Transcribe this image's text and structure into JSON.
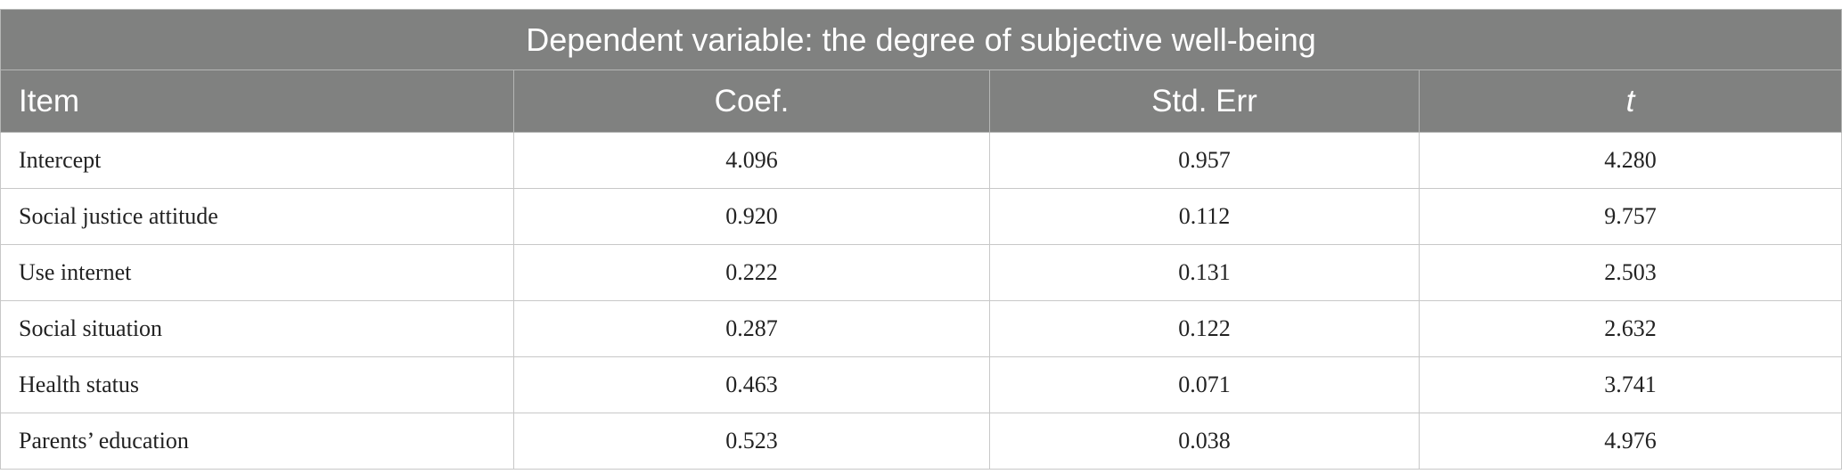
{
  "table": {
    "title": "Dependent variable: the degree of subjective well-being",
    "header": [
      "Item",
      "Coef.",
      "Std. Err",
      "t"
    ],
    "rows": [
      [
        "Intercept",
        "4.096",
        "0.957",
        "4.280"
      ],
      [
        "Social justice attitude",
        "0.920",
        "0.112",
        "9.757"
      ],
      [
        "Use internet",
        "0.222",
        "0.131",
        "2.503"
      ],
      [
        "Social situation",
        "0.287",
        "0.122",
        "2.632"
      ],
      [
        "Health status",
        "0.463",
        "0.071",
        "3.741"
      ],
      [
        "Parents’ education",
        "0.523",
        "0.038",
        "4.976"
      ]
    ]
  }
}
